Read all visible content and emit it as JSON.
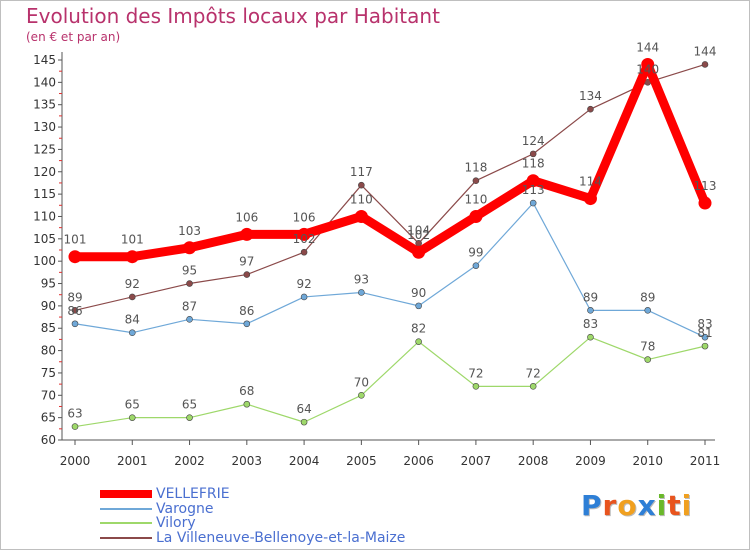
{
  "header": {
    "title": "Evolution des Impôts locaux par Habitant",
    "subtitle": "(en € et par an)"
  },
  "logo": {
    "letters": [
      "P",
      "r",
      "o",
      "x",
      "i",
      "t",
      "i"
    ],
    "colors": [
      "#2e7fd6",
      "#e8541e",
      "#f0a020",
      "#2e7fd6",
      "#6ab82a",
      "#e8541e",
      "#f0a020"
    ]
  },
  "chart_data": {
    "type": "line",
    "title": "Evolution des Impôts locaux par Habitant",
    "subtitle": "(en € et par an)",
    "x": [
      "2000",
      "2001",
      "2002",
      "2003",
      "2004",
      "2005",
      "2006",
      "2007",
      "2008",
      "2009",
      "2010",
      "2011"
    ],
    "ylim": [
      60,
      145
    ],
    "yticks": [
      60,
      65,
      70,
      75,
      80,
      85,
      90,
      95,
      100,
      105,
      110,
      115,
      120,
      125,
      130,
      135,
      140,
      145
    ],
    "grid": false,
    "legend_position": "bottom-left",
    "series": [
      {
        "name": "VELLEFRIE",
        "color": "#ff0000",
        "values": [
          101,
          101,
          103,
          106,
          106,
          110,
          102,
          110,
          118,
          114,
          144,
          113
        ],
        "labels": [
          "101",
          "101",
          "103",
          "106",
          "106",
          "110",
          "102",
          "110",
          "118",
          "114",
          "144",
          "113"
        ]
      },
      {
        "name": "Varogne",
        "color": "#6fa8d8",
        "values": [
          86,
          84,
          87,
          86,
          92,
          93,
          90,
          99,
          113,
          89,
          89,
          83
        ],
        "labels": [
          "86",
          "84",
          "87",
          "86",
          "92",
          "93",
          "90",
          "99",
          "113",
          "89",
          "89",
          "83"
        ]
      },
      {
        "name": "Vilory",
        "color": "#9ed86a",
        "values": [
          63,
          65,
          65,
          68,
          64,
          70,
          82,
          72,
          72,
          83,
          78,
          81
        ],
        "labels": [
          "63",
          "65",
          "65",
          "68",
          "64",
          "70",
          "82",
          "72",
          "72",
          "83",
          "78",
          "81"
        ]
      },
      {
        "name": "La Villeneuve-Bellenoye-et-la-Maize",
        "color": "#8b4a4a",
        "values": [
          89,
          92,
          95,
          97,
          102,
          117,
          104,
          118,
          124,
          134,
          140,
          144
        ],
        "labels": [
          "89",
          "92",
          "95",
          "97",
          "102",
          "117",
          "104",
          "118",
          "124",
          "134",
          "140",
          "144"
        ]
      }
    ]
  }
}
